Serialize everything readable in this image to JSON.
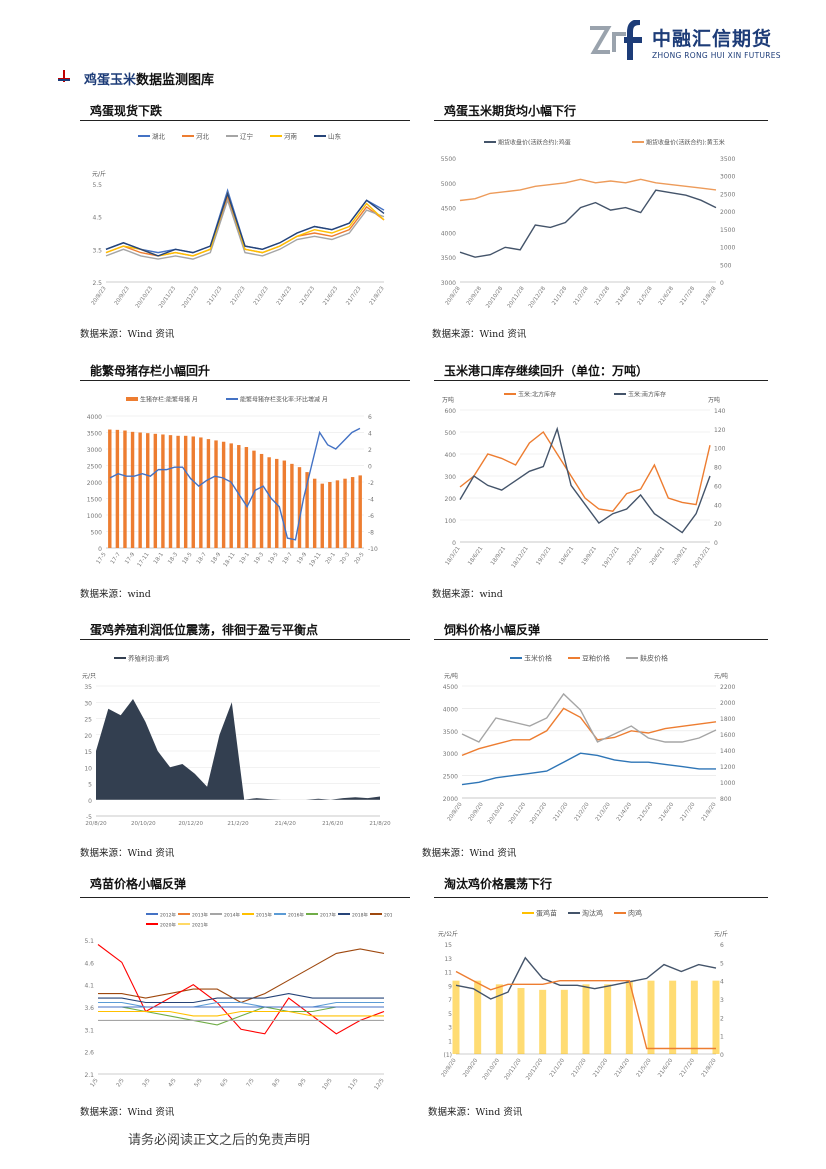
{
  "header": {
    "logo_cn": "中融汇信期货",
    "logo_en": "ZHONG RONG HUI XIN FUTURES"
  },
  "section": {
    "title_highlight": "鸡蛋玉米",
    "title_rest": "数据监测图库"
  },
  "charts": [
    {
      "title": "鸡蛋现货下跌",
      "source": "数据来源：Wind 资讯",
      "chart_data": {
        "type": "line",
        "ylabel": "元/斤",
        "ylim": [
          2.5,
          5.5
        ],
        "yticks": [
          "2.5",
          "3.5",
          "4.5",
          "5.5"
        ],
        "xticks": [
          "20/8/23",
          "20/9/23",
          "20/10/23",
          "20/11/23",
          "20/12/23",
          "21/1/23",
          "21/2/23",
          "21/3/23",
          "21/4/23",
          "21/5/23",
          "21/6/23",
          "21/7/23",
          "21/8/23"
        ],
        "series": [
          {
            "name": "湖北",
            "color": "#4472c4",
            "values": [
              3.5,
              3.7,
              3.5,
              3.4,
              3.5,
              3.4,
              3.6,
              5.3,
              3.6,
              3.5,
              3.7,
              4.0,
              4.2,
              4.1,
              4.3,
              5.0,
              4.7
            ]
          },
          {
            "name": "河北",
            "color": "#ed7d31",
            "values": [
              3.4,
              3.6,
              3.4,
              3.3,
              3.4,
              3.3,
              3.5,
              5.1,
              3.5,
              3.4,
              3.6,
              3.9,
              4.0,
              3.9,
              4.1,
              4.8,
              4.4
            ]
          },
          {
            "name": "辽宁",
            "color": "#a5a5a5",
            "values": [
              3.3,
              3.5,
              3.3,
              3.2,
              3.3,
              3.2,
              3.4,
              5.0,
              3.4,
              3.3,
              3.5,
              3.8,
              3.9,
              3.8,
              4.0,
              4.7,
              4.5
            ]
          },
          {
            "name": "河南",
            "color": "#ffc000",
            "values": [
              3.4,
              3.6,
              3.5,
              3.3,
              3.4,
              3.3,
              3.5,
              5.2,
              3.5,
              3.4,
              3.6,
              3.9,
              4.1,
              4.0,
              4.2,
              4.9,
              4.4
            ]
          },
          {
            "name": "山东",
            "color": "#264478",
            "values": [
              3.5,
              3.7,
              3.5,
              3.3,
              3.5,
              3.4,
              3.6,
              5.2,
              3.6,
              3.5,
              3.7,
              4.0,
              4.2,
              4.1,
              4.3,
              5.0,
              4.6
            ]
          }
        ]
      }
    },
    {
      "title": "鸡蛋玉米期货均小幅下行",
      "source": "数据来源：Wind 资讯",
      "chart_data": {
        "type": "line",
        "yticks_left": [
          "3000",
          "3500",
          "4000",
          "4500",
          "5000",
          "5500"
        ],
        "yticks_right": [
          "0",
          "500",
          "1000",
          "1500",
          "2000",
          "2500",
          "3000",
          "3500"
        ],
        "xticks": [
          "20/8/28",
          "20/9/28",
          "20/10/28",
          "20/11/28",
          "20/12/28",
          "21/1/28",
          "21/2/28",
          "21/3/28",
          "21/4/28",
          "21/5/28",
          "21/6/28",
          "21/7/28",
          "21/8/28"
        ],
        "series": [
          {
            "name": "期货收盘价(活跃合约):鸡蛋",
            "color": "#44546a",
            "axis": "left",
            "values": [
              3600,
              3500,
              3550,
              3700,
              3650,
              4150,
              4100,
              4200,
              4500,
              4600,
              4450,
              4500,
              4400,
              4850,
              4800,
              4750,
              4650,
              4500
            ]
          },
          {
            "name": "期货收盘价(活跃合约):黄玉米",
            "color": "#ed9b5a",
            "axis": "right",
            "values": [
              2300,
              2350,
              2500,
              2550,
              2600,
              2700,
              2750,
              2800,
              2900,
              2800,
              2850,
              2800,
              2900,
              2800,
              2750,
              2700,
              2650,
              2600
            ]
          }
        ]
      }
    },
    {
      "title": "能繁母猪存栏小幅回升",
      "source": "数据来源：wind",
      "chart_data": {
        "type": "bar",
        "yticks_left": [
          "0",
          "500",
          "1000",
          "1500",
          "2000",
          "2500",
          "3000",
          "3500",
          "4000"
        ],
        "yticks_right": [
          "-10",
          "-8",
          "-6",
          "-4",
          "-2",
          "0",
          "2",
          "4",
          "6"
        ],
        "xticks": [
          "17-5",
          "17-7",
          "17-9",
          "17-11",
          "18-1",
          "18-3",
          "18-5",
          "18-7",
          "18-9",
          "18-11",
          "19-1",
          "19-3",
          "19-5",
          "19-7",
          "19-9",
          "19-11",
          "20-1",
          "20-3",
          "20-5"
        ],
        "series": [
          {
            "name": "生猪存栏:能繁母猪 月",
            "color": "#ed7d31",
            "values": [
              3590,
              3580,
              3560,
              3520,
              3500,
              3480,
              3460,
              3440,
              3420,
              3400,
              3400,
              3380,
              3350,
              3300,
              3260,
              3220,
              3170,
              3120,
              3060,
              2950,
              2850,
              2750,
              2700,
              2650,
              2550,
              2450,
              2300,
              2100,
              1950,
              2000,
              2050,
              2100,
              2150,
              2200
            ]
          },
          {
            "name": "能繁母猪存栏变化率:环比增减 月",
            "color": "#4472c4",
            "values": [
              -1.5,
              -1,
              -1.3,
              -1.3,
              -1,
              -1.3,
              -0.5,
              -0.5,
              -0.2,
              -0.2,
              -1.6,
              -2.5,
              -1.8,
              -1.3,
              -1.5,
              -2,
              -3.5,
              -5,
              -3,
              -2.5,
              -4,
              -5,
              -8.8,
              -9,
              -4,
              0,
              4,
              2.5,
              2,
              3,
              4,
              4.5
            ]
          }
        ]
      }
    },
    {
      "title": "玉米港口库存继续回升（单位：万吨）",
      "source": "数据来源：wind",
      "chart_data": {
        "type": "line",
        "ylabel_left": "万吨",
        "ylabel_right": "万吨",
        "yticks_left": [
          "0",
          "100",
          "200",
          "300",
          "400",
          "500",
          "600"
        ],
        "yticks_right": [
          "0",
          "20",
          "40",
          "60",
          "80",
          "100",
          "120",
          "140"
        ],
        "xticks": [
          "18/3/21",
          "18/6/21",
          "18/9/21",
          "18/12/21",
          "19/3/21",
          "19/6/21",
          "19/9/21",
          "19/12/21",
          "20/3/21",
          "20/6/21",
          "20/9/21",
          "20/12/21"
        ],
        "series": [
          {
            "name": "玉米:北方库存",
            "color": "#ed7d31",
            "axis": "left",
            "values": [
              250,
              300,
              400,
              380,
              350,
              450,
              500,
              400,
              300,
              200,
              150,
              140,
              220,
              240,
              350,
              200,
              180,
              170,
              440
            ]
          },
          {
            "name": "玉米:南方库存",
            "color": "#44546a",
            "axis": "right",
            "values": [
              45,
              70,
              60,
              55,
              65,
              75,
              80,
              120,
              60,
              40,
              20,
              30,
              35,
              50,
              30,
              20,
              10,
              30,
              70
            ]
          }
        ]
      }
    },
    {
      "title": "蛋鸡养殖利润低位震荡，徘徊于盈亏平衡点",
      "source": "数据来源：Wind 资讯",
      "chart_data": {
        "type": "area",
        "ylabel": "元/只",
        "yticks": [
          "-5",
          "0",
          "5",
          "10",
          "15",
          "20",
          "25",
          "30",
          "35"
        ],
        "xticks": [
          "20/8/20",
          "20/10/20",
          "20/12/20",
          "21/2/20",
          "21/4/20",
          "21/6/20",
          "21/8/20"
        ],
        "series": [
          {
            "name": "养殖利润:蛋鸡",
            "color": "#333f50",
            "values": [
              15,
              28,
              26,
              31,
              24,
              15,
              10,
              11,
              8,
              4,
              20,
              30,
              0,
              0.5,
              0.2,
              0,
              0,
              0,
              0.3,
              0,
              0.5,
              0.8,
              0.5,
              1
            ]
          }
        ]
      }
    },
    {
      "title": "饲料价格小幅反弹",
      "source": "数据来源：Wind 资讯",
      "chart_data": {
        "type": "line",
        "ylabel_left": "元/吨",
        "ylabel_right": "元/吨",
        "yticks_left": [
          "2000",
          "2500",
          "3000",
          "3500",
          "4000",
          "4500"
        ],
        "yticks_right": [
          "800",
          "1000",
          "1200",
          "1400",
          "1600",
          "1800",
          "2000",
          "2200"
        ],
        "xticks": [
          "20/8/20",
          "20/9/20",
          "20/10/20",
          "20/11/20",
          "20/12/20",
          "21/1/20",
          "21/2/20",
          "21/3/20",
          "21/4/20",
          "21/5/20",
          "21/6/20",
          "21/7/20",
          "21/8/20"
        ],
        "series": [
          {
            "name": "玉米价格",
            "color": "#2e75b6",
            "axis": "left",
            "values": [
              2300,
              2350,
              2450,
              2500,
              2550,
              2600,
              2800,
              3000,
              2950,
              2850,
              2800,
              2800,
              2750,
              2700,
              2650,
              2650
            ]
          },
          {
            "name": "豆粕价格",
            "color": "#ed7d31",
            "axis": "left",
            "values": [
              2950,
              3100,
              3200,
              3300,
              3300,
              3500,
              4000,
              3800,
              3300,
              3350,
              3500,
              3450,
              3550,
              3600,
              3650,
              3700
            ]
          },
          {
            "name": "麸皮价格",
            "color": "#a5a5a5",
            "axis": "right",
            "values": [
              1600,
              1500,
              1800,
              1750,
              1700,
              1800,
              2100,
              1900,
              1500,
              1600,
              1700,
              1550,
              1500,
              1500,
              1550,
              1650
            ]
          }
        ]
      }
    },
    {
      "title": "鸡苗价格小幅反弹",
      "source": "数据来源：Wind 资讯",
      "chart_data": {
        "type": "line",
        "legend": [
          "2012年",
          "2013年",
          "2014年",
          "2015年",
          "2016年",
          "2017年",
          "2018年",
          "2019年",
          "2020年",
          "2021年"
        ],
        "legend_colors": [
          "#4472c4",
          "#ed7d31",
          "#a5a5a5",
          "#ffc000",
          "#5b9bd5",
          "#70ad47",
          "#264478",
          "#9e480e",
          "#ff0000",
          "#ffd966"
        ],
        "yticks": [
          "2.1",
          "2.6",
          "3.1",
          "3.6",
          "4.1",
          "4.6",
          "5.1"
        ],
        "xticks": [
          "1/5",
          "2/5",
          "3/5",
          "4/5",
          "5/5",
          "6/5",
          "7/5",
          "8/5",
          "9/5",
          "10/5",
          "11/5",
          "12/5"
        ],
        "series": [
          {
            "name": "2019年",
            "color": "#9e480e",
            "values": [
              3.9,
              3.9,
              3.8,
              3.9,
              4.0,
              4.0,
              3.7,
              3.9,
              4.2,
              4.5,
              4.8,
              4.9,
              4.8
            ]
          },
          {
            "name": "2020年",
            "color": "#ff0000",
            "values": [
              5.0,
              4.6,
              3.5,
              3.8,
              4.1,
              3.7,
              3.1,
              3.0,
              3.8,
              3.4,
              3.0,
              3.3,
              3.5
            ]
          },
          {
            "name": "2018年",
            "color": "#264478",
            "values": [
              3.8,
              3.8,
              3.7,
              3.7,
              3.7,
              3.8,
              3.8,
              3.8,
              3.9,
              3.8,
              3.8,
              3.8,
              3.8
            ]
          },
          {
            "name": "2017年",
            "color": "#70ad47",
            "values": [
              3.6,
              3.6,
              3.5,
              3.4,
              3.3,
              3.2,
              3.4,
              3.6,
              3.5,
              3.5,
              3.6,
              3.6,
              3.6
            ]
          },
          {
            "name": "2016年",
            "color": "#5b9bd5",
            "values": [
              3.7,
              3.7,
              3.6,
              3.6,
              3.6,
              3.7,
              3.7,
              3.6,
              3.6,
              3.6,
              3.7,
              3.7,
              3.7
            ]
          },
          {
            "name": "2015年",
            "color": "#ffc000",
            "values": [
              3.5,
              3.5,
              3.5,
              3.5,
              3.4,
              3.4,
              3.5,
              3.5,
              3.5,
              3.4,
              3.4,
              3.4,
              3.4
            ]
          },
          {
            "name": "2014年",
            "color": "#a5a5a5",
            "values": [
              3.3,
              3.3,
              3.3,
              3.3,
              3.3,
              3.3,
              3.3,
              3.3,
              3.3,
              3.3,
              3.3,
              3.3,
              3.3
            ]
          },
          {
            "name": "2012年",
            "color": "#4472c4",
            "values": [
              3.6,
              3.6,
              3.6,
              3.6,
              3.6,
              3.6,
              3.6,
              3.6,
              3.6,
              3.6,
              3.6,
              3.6,
              3.6
            ]
          }
        ]
      }
    },
    {
      "title": "淘汰鸡价格震荡下行",
      "source": "数据来源：Wind 资讯",
      "chart_data": {
        "type": "line",
        "ylabel_left": "元/公斤",
        "ylabel_right": "元/斤",
        "yticks_left": [
          "(1)",
          "1",
          "3",
          "5",
          "7",
          "9",
          "11",
          "13",
          "15"
        ],
        "yticks_right": [
          "0",
          "1",
          "2",
          "3",
          "4",
          "5",
          "6"
        ],
        "xticks": [
          "20/8/20",
          "20/9/20",
          "20/10/20",
          "20/11/20",
          "20/12/20",
          "21/1/20",
          "21/2/20",
          "21/3/20",
          "21/4/20",
          "21/5/20",
          "21/6/20",
          "21/7/20",
          "21/8/20"
        ],
        "series": [
          {
            "name": "蛋鸡苗",
            "color": "#ffc000",
            "axis": "right",
            "values": [
              4,
              4,
              3.8,
              3.6,
              3.5,
              3.5,
              3.8,
              3.8,
              4,
              4,
              4,
              4,
              4
            ]
          },
          {
            "name": "淘汰鸡",
            "color": "#44546a",
            "axis": "left",
            "values": [
              9,
              8.5,
              7,
              8,
              13,
              10,
              9,
              9,
              8.5,
              9,
              9.5,
              10,
              12,
              11,
              12,
              11.5
            ]
          },
          {
            "name": "肉鸡",
            "color": "#ed7d31",
            "axis": "right",
            "values": [
              4.5,
              4,
              3.5,
              3.8,
              3.8,
              3.8,
              4,
              4,
              4,
              4,
              4,
              0.3,
              0.3,
              0.3,
              0.3,
              0.3
            ]
          }
        ]
      }
    }
  ],
  "footer": "请务必阅读正文之后的免责声明"
}
